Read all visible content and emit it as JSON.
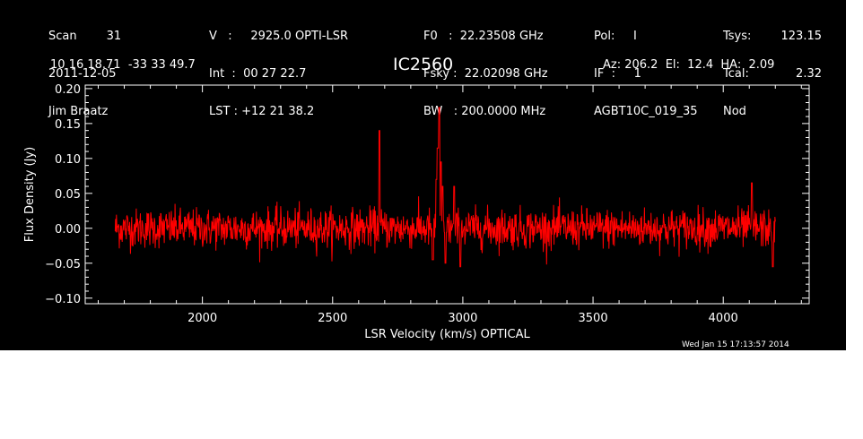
{
  "header": {
    "col1": [
      "Scan        31",
      "2011-12-05",
      "Jim Braatz"
    ],
    "col2": [
      "V   :     2925.0 OPTI-LSR",
      "Int  :  00 27 22.7",
      "LST : +12 21 38.2"
    ],
    "col3": [
      "F0   :  22.23508 GHz",
      "Fsky :  22.02098 GHz",
      "BW   : 200.0000 MHz"
    ],
    "col4": [
      "Pol:     I",
      "IF  :     1",
      "AGBT10C_019_35"
    ],
    "col5a": [
      "Tsys:",
      "Tcal:",
      "Nod"
    ],
    "col5b": [
      "123.15",
      "2.32",
      ""
    ],
    "coords": "10 16 18.71  -33 33 49.7",
    "source": "IC2560",
    "azel": "Az: 206.2  El:  12.4  HA:  2.09",
    "timestamp": "Wed Jan 15 17:13:57 2014"
  },
  "colors": {
    "background": "#000000",
    "foreground": "#ffffff",
    "trace": "#ff0000"
  },
  "chart_data": {
    "type": "line",
    "title": "IC2560",
    "xlabel": "LSR Velocity (km/s) OPTICAL",
    "ylabel": "Flux Density (Jy)",
    "xlim": [
      1550,
      4330
    ],
    "ylim": [
      -0.108,
      0.205
    ],
    "xticks": [
      2000,
      2500,
      3000,
      3500,
      4000
    ],
    "xtick_labels": [
      "2000",
      "2500",
      "3000",
      "3500",
      "4000"
    ],
    "yticks": [
      -0.1,
      -0.05,
      0.0,
      0.05,
      0.1,
      0.15,
      0.2
    ],
    "ytick_labels": [
      "−0.10",
      "−0.05",
      "0.00",
      "0.05",
      "0.10",
      "0.15",
      "0.20"
    ],
    "x_range": [
      1665,
      4200
    ],
    "noise_rms": 0.014,
    "features": [
      {
        "x": 2910,
        "y": 0.173
      },
      {
        "x": 2904,
        "y": 0.115
      },
      {
        "x": 2916,
        "y": 0.095
      },
      {
        "x": 2898,
        "y": 0.07
      },
      {
        "x": 2922,
        "y": 0.06
      },
      {
        "x": 2680,
        "y": 0.14
      },
      {
        "x": 2966,
        "y": 0.06
      },
      {
        "x": 4110,
        "y": 0.065
      },
      {
        "x": 2933,
        "y": -0.05
      },
      {
        "x": 2885,
        "y": -0.045
      },
      {
        "x": 2990,
        "y": -0.055
      },
      {
        "x": 4190,
        "y": -0.055
      }
    ],
    "grid": false,
    "legend": "none"
  }
}
